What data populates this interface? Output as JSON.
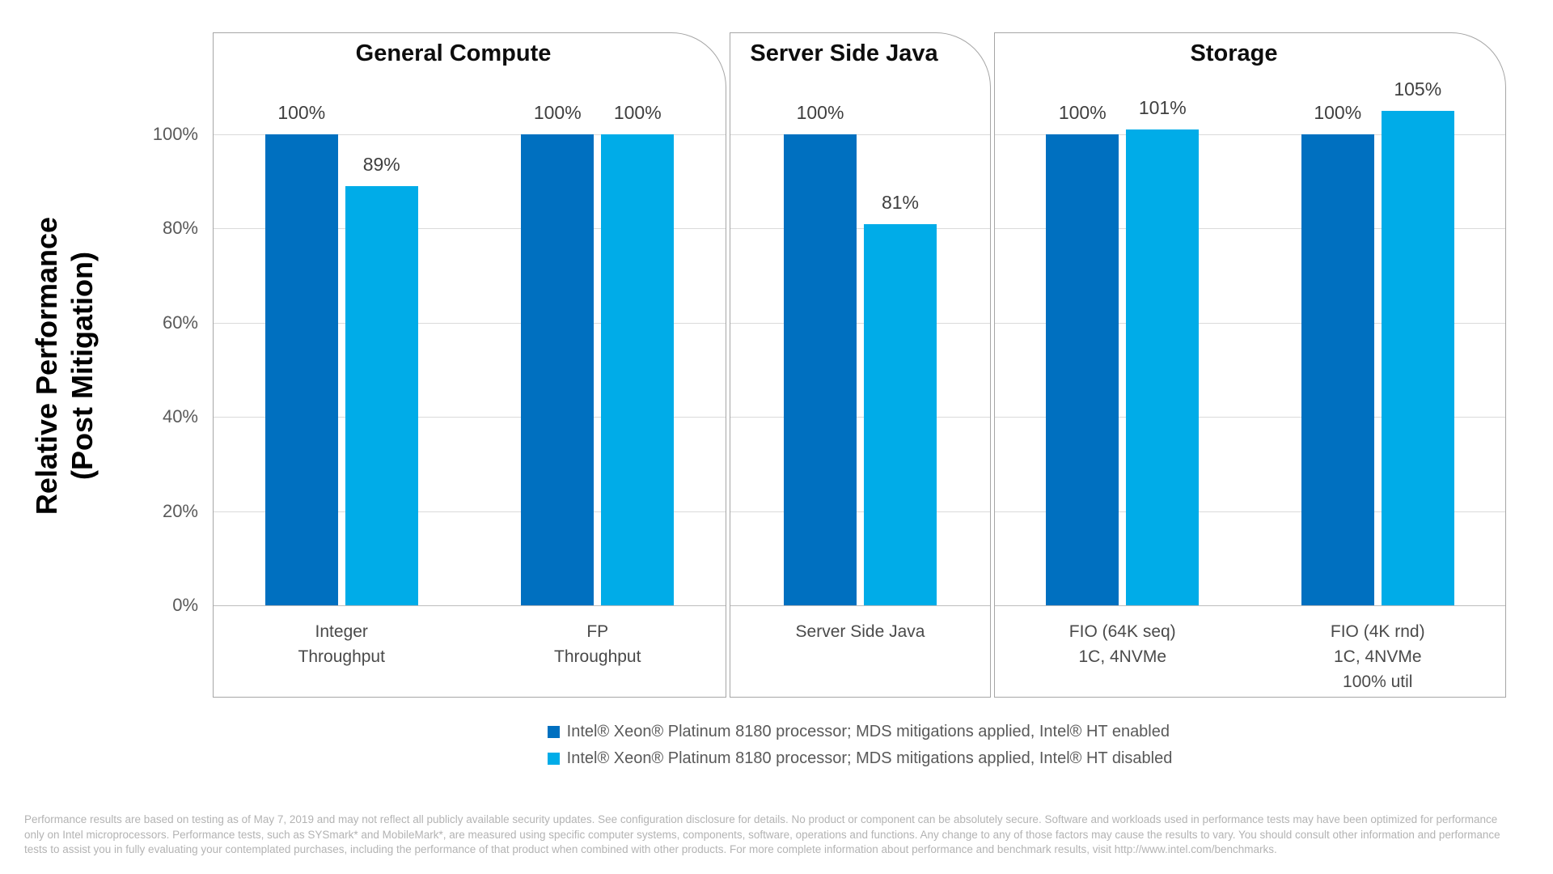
{
  "chart_data": {
    "type": "bar",
    "ylabel_lines": [
      "Relative Performance",
      "(Post Mitigation)"
    ],
    "y_ticks": [
      {
        "label": "0%",
        "value": 0
      },
      {
        "label": "20%",
        "value": 20
      },
      {
        "label": "40%",
        "value": 40
      },
      {
        "label": "60%",
        "value": 60
      },
      {
        "label": "80%",
        "value": 80
      },
      {
        "label": "100%",
        "value": 100
      }
    ],
    "ylim": [
      0,
      116
    ],
    "grid": true,
    "legend_position": "bottom",
    "series": [
      {
        "name": "Intel® Xeon® Platinum 8180 processor; MDS mitigations applied, Intel® HT enabled",
        "color": "#0070C0"
      },
      {
        "name": "Intel® Xeon® Platinum 8180 processor; MDS mitigations applied, Intel® HT disabled",
        "color": "#00ACE8"
      }
    ],
    "panels": [
      {
        "title": "General Compute",
        "groups": [
          {
            "label_lines": [
              "Integer",
              "Throughput"
            ],
            "values": [
              100,
              89
            ],
            "value_labels": [
              "100%",
              "89%"
            ]
          },
          {
            "label_lines": [
              "FP",
              "Throughput"
            ],
            "values": [
              100,
              100
            ],
            "value_labels": [
              "100%",
              "100%"
            ]
          }
        ]
      },
      {
        "title": "Server Side Java",
        "groups": [
          {
            "label_lines": [
              "Server Side Java"
            ],
            "values": [
              100,
              81
            ],
            "value_labels": [
              "100%",
              "81%"
            ]
          }
        ]
      },
      {
        "title": "Storage",
        "groups": [
          {
            "label_lines": [
              "FIO (64K seq)",
              "1C, 4NVMe"
            ],
            "values": [
              100,
              101
            ],
            "value_labels": [
              "100%",
              "101%"
            ]
          },
          {
            "label_lines": [
              "FIO (4K rnd)",
              "1C, 4NVMe",
              "100% util"
            ],
            "values": [
              100,
              105
            ],
            "value_labels": [
              "100%",
              "105%"
            ]
          }
        ]
      }
    ]
  },
  "footer": {
    "lines": [
      "Performance results are based on testing as of May 7, 2019 and may not reflect all publicly available security updates. See configuration disclosure for details. No product or component can be absolutely secure. Software and workloads used in performance tests may have been optimized for performance",
      "only on Intel microprocessors. Performance tests, such as SYSmark* and MobileMark*, are measured using specific computer systems, components, software, operations and functions.  Any change to any of those factors may cause the results to vary.  You should consult other information and performance",
      "tests to assist you in fully evaluating your contemplated purchases, including the performance of that product when combined with other products. For more complete information about performance and benchmark results, visit http://www.intel.com/benchmarks."
    ]
  }
}
